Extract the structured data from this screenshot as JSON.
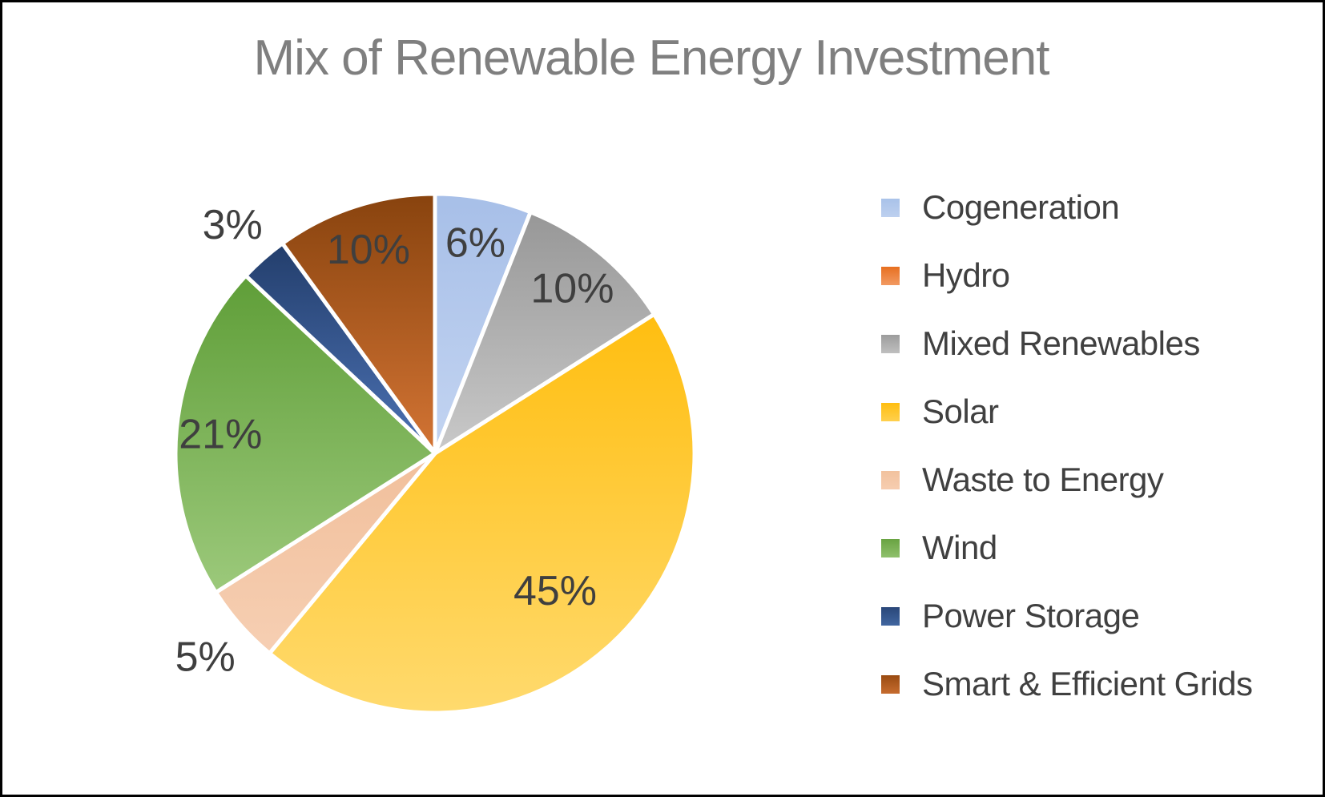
{
  "page": {
    "background": "#FFFFFF",
    "border_color": "#000000"
  },
  "chart_data": {
    "type": "pie",
    "title": "Mix of Renewable Energy Investment",
    "title_color": "#7F7F7F",
    "data_label_color": "#3F3F3F",
    "legend_text_color": "#404040",
    "legend_position": "right",
    "start_angle_deg": 0,
    "direction": "clockwise",
    "slice_separator_color": "#FFFFFF",
    "categories": [
      "Cogeneration",
      "Hydro",
      "Mixed Renewables",
      "Solar",
      "Waste to Energy",
      "Wind",
      "Power Storage",
      "Smart & Efficient Grids"
    ],
    "values": [
      6,
      0,
      10,
      45,
      5,
      21,
      3,
      10
    ],
    "series": [
      {
        "label": "Cogeneration",
        "value": 6,
        "data_label": "6%",
        "color_top": "#A7BFE8",
        "color_bottom": "#C3D4F1",
        "swatch_top": "#A9C2E9",
        "swatch_bottom": "#BDD0EF"
      },
      {
        "label": "Hydro",
        "value": 0,
        "data_label": "",
        "color_top": "#E76F20",
        "color_bottom": "#F29A62",
        "swatch_top": "#E76F20",
        "swatch_bottom": "#F29A62"
      },
      {
        "label": "Mixed Renewables",
        "value": 10,
        "data_label": "10%",
        "color_top": "#979797",
        "color_bottom": "#C9C9C9",
        "swatch_top": "#9C9C9C",
        "swatch_bottom": "#BFBFBF"
      },
      {
        "label": "Solar",
        "value": 45,
        "data_label": "45%",
        "color_top": "#FFBE10",
        "color_bottom": "#FFDA6E",
        "swatch_top": "#FFBE10",
        "swatch_bottom": "#FFD04E"
      },
      {
        "label": "Waste to Energy",
        "value": 5,
        "data_label": "5%",
        "color_top": "#F1BF9B",
        "color_bottom": "#F6CFB3",
        "swatch_top": "#F2C29E",
        "swatch_bottom": "#F6CDB0"
      },
      {
        "label": "Wind",
        "value": 21,
        "data_label": "21%",
        "color_top": "#5F9E38",
        "color_bottom": "#9CC97B",
        "swatch_top": "#69A342",
        "swatch_bottom": "#8FC06C"
      },
      {
        "label": "Power Storage",
        "value": 3,
        "data_label": "3%",
        "color_top": "#233E6C",
        "color_bottom": "#4C72B4",
        "swatch_top": "#2A4779",
        "swatch_bottom": "#4066A0"
      },
      {
        "label": "Smart & Efficient Grids",
        "value": 10,
        "data_label": "10%",
        "color_top": "#88430E",
        "color_bottom": "#D37434",
        "swatch_top": "#9A4B11",
        "swatch_bottom": "#C66C2F"
      }
    ]
  }
}
